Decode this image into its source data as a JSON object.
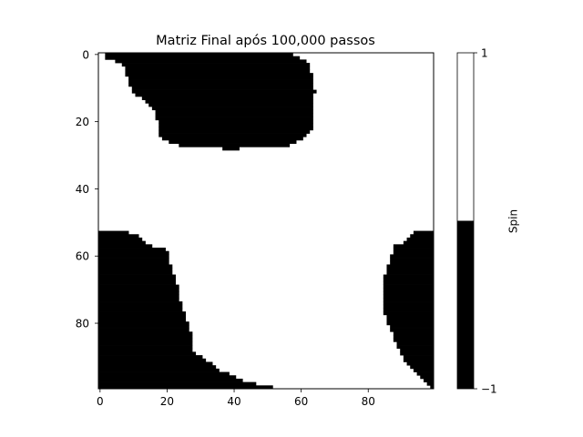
{
  "chart_data": {
    "type": "heatmap",
    "title": "Matriz Final após 100,000 passos",
    "grid_size": 100,
    "x_ticks": [
      0,
      20,
      40,
      60,
      80
    ],
    "y_ticks": [
      0,
      20,
      40,
      60,
      80
    ],
    "cell_values": [
      -1,
      1
    ],
    "colors": {
      "spin_-1": "#000000",
      "spin_1": "#ffffff"
    },
    "colorbar": {
      "label": "Spin",
      "ticks": [
        -1,
        1
      ],
      "tick_labels": [
        "−1",
        "1"
      ]
    },
    "regions": [
      {
        "name": "top-cluster",
        "value": -1,
        "rows": [
          [
            0,
            2,
            57
          ],
          [
            1,
            2,
            59
          ],
          [
            2,
            5,
            61
          ],
          [
            3,
            7,
            62
          ],
          [
            4,
            8,
            62
          ],
          [
            5,
            8,
            62
          ],
          [
            6,
            8,
            63
          ],
          [
            7,
            9,
            63
          ],
          [
            8,
            9,
            63
          ],
          [
            9,
            9,
            63
          ],
          [
            10,
            10,
            63
          ],
          [
            11,
            10,
            64
          ],
          [
            12,
            11,
            63
          ],
          [
            13,
            13,
            63
          ],
          [
            14,
            14,
            63
          ],
          [
            15,
            15,
            63
          ],
          [
            16,
            16,
            63
          ],
          [
            17,
            17,
            63
          ],
          [
            18,
            17,
            63
          ],
          [
            19,
            17,
            63
          ],
          [
            20,
            18,
            63
          ],
          [
            21,
            18,
            63
          ],
          [
            22,
            18,
            63
          ],
          [
            23,
            18,
            62
          ],
          [
            24,
            18,
            61
          ],
          [
            25,
            19,
            60
          ],
          [
            26,
            21,
            58
          ],
          [
            27,
            24,
            56
          ],
          [
            28,
            37,
            41
          ]
        ]
      },
      {
        "name": "bottom-left-cluster",
        "value": -1,
        "rows": [
          [
            53,
            0,
            8
          ],
          [
            54,
            0,
            11
          ],
          [
            55,
            0,
            12
          ],
          [
            56,
            0,
            13
          ],
          [
            57,
            0,
            15
          ],
          [
            58,
            0,
            19
          ],
          [
            59,
            0,
            20
          ],
          [
            60,
            0,
            20
          ],
          [
            61,
            0,
            20
          ],
          [
            62,
            0,
            20
          ],
          [
            63,
            0,
            21
          ],
          [
            64,
            0,
            21
          ],
          [
            65,
            0,
            21
          ],
          [
            66,
            0,
            22
          ],
          [
            67,
            0,
            22
          ],
          [
            68,
            0,
            22
          ],
          [
            69,
            0,
            23
          ],
          [
            70,
            0,
            23
          ],
          [
            71,
            0,
            23
          ],
          [
            72,
            0,
            23
          ],
          [
            73,
            0,
            23
          ],
          [
            74,
            0,
            24
          ],
          [
            75,
            0,
            24
          ],
          [
            76,
            0,
            24
          ],
          [
            77,
            0,
            25
          ],
          [
            78,
            0,
            25
          ],
          [
            79,
            0,
            25
          ],
          [
            80,
            0,
            26
          ],
          [
            81,
            0,
            26
          ],
          [
            82,
            0,
            26
          ],
          [
            83,
            0,
            27
          ],
          [
            84,
            0,
            27
          ],
          [
            85,
            0,
            27
          ],
          [
            86,
            0,
            27
          ],
          [
            87,
            0,
            27
          ],
          [
            88,
            0,
            27
          ],
          [
            89,
            0,
            28
          ],
          [
            90,
            0,
            30
          ],
          [
            91,
            0,
            31
          ],
          [
            92,
            0,
            33
          ],
          [
            93,
            0,
            34
          ],
          [
            94,
            0,
            35
          ],
          [
            95,
            0,
            38
          ],
          [
            96,
            0,
            40
          ],
          [
            97,
            0,
            42
          ],
          [
            98,
            0,
            46
          ],
          [
            99,
            0,
            51
          ]
        ]
      },
      {
        "name": "right-cluster",
        "value": -1,
        "rows": [
          [
            53,
            94,
            99
          ],
          [
            54,
            93,
            99
          ],
          [
            55,
            92,
            99
          ],
          [
            56,
            91,
            99
          ],
          [
            57,
            88,
            99
          ],
          [
            58,
            88,
            99
          ],
          [
            59,
            88,
            99
          ],
          [
            60,
            87,
            99
          ],
          [
            61,
            87,
            99
          ],
          [
            62,
            87,
            99
          ],
          [
            63,
            86,
            99
          ],
          [
            64,
            86,
            99
          ],
          [
            65,
            86,
            99
          ],
          [
            66,
            85,
            99
          ],
          [
            67,
            85,
            99
          ],
          [
            68,
            85,
            99
          ],
          [
            69,
            85,
            99
          ],
          [
            70,
            85,
            99
          ],
          [
            71,
            85,
            99
          ],
          [
            72,
            85,
            99
          ],
          [
            73,
            85,
            99
          ],
          [
            74,
            85,
            99
          ],
          [
            75,
            85,
            99
          ],
          [
            76,
            85,
            99
          ],
          [
            77,
            85,
            99
          ],
          [
            78,
            86,
            99
          ],
          [
            79,
            86,
            99
          ],
          [
            80,
            86,
            99
          ],
          [
            81,
            87,
            99
          ],
          [
            82,
            87,
            99
          ],
          [
            83,
            88,
            99
          ],
          [
            84,
            88,
            99
          ],
          [
            85,
            88,
            99
          ],
          [
            86,
            89,
            99
          ],
          [
            87,
            89,
            99
          ],
          [
            88,
            90,
            99
          ],
          [
            89,
            90,
            99
          ],
          [
            90,
            91,
            99
          ],
          [
            91,
            91,
            99
          ],
          [
            92,
            92,
            99
          ],
          [
            93,
            93,
            99
          ],
          [
            94,
            94,
            99
          ],
          [
            95,
            95,
            99
          ],
          [
            96,
            96,
            99
          ],
          [
            97,
            97,
            99
          ],
          [
            98,
            98,
            99
          ],
          [
            99,
            99,
            99
          ]
        ]
      }
    ]
  }
}
